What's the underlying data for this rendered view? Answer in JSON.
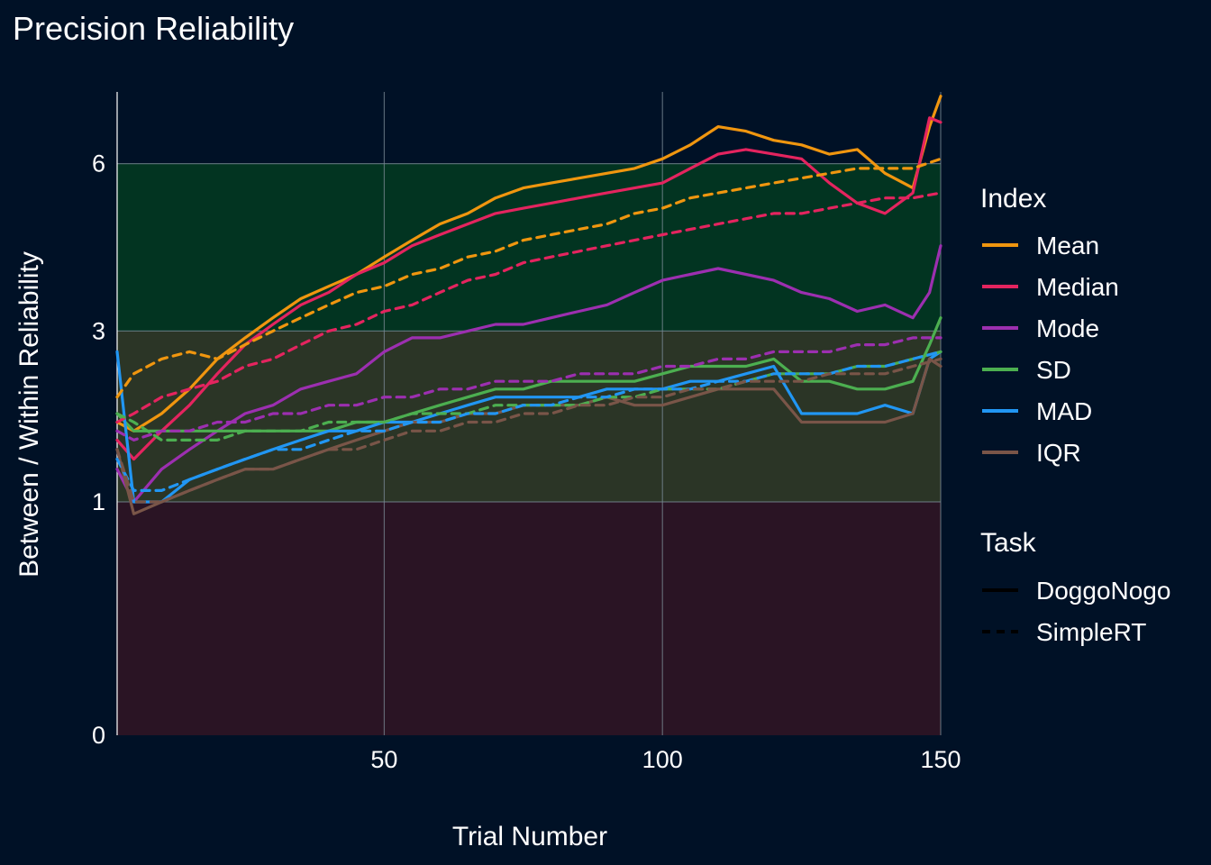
{
  "chart_data": {
    "type": "line",
    "title": "Precision Reliability",
    "xlabel": "Trial Number",
    "ylabel": "Between / Within Reliability",
    "xlim": [
      2,
      150
    ],
    "x_ticks": [
      50,
      100,
      150
    ],
    "y_ticks": [
      0,
      1,
      3,
      6
    ],
    "y_scale": "sqrt",
    "grid": true,
    "legend_position": "right",
    "bands": [
      {
        "from": 0,
        "to": 1,
        "color": "#2a1424"
      },
      {
        "from": 1,
        "to": 3,
        "color": "#2b3526"
      },
      {
        "from": 3,
        "to": 6,
        "color": "#023421"
      }
    ],
    "legend_index": {
      "title": "Index",
      "items": [
        {
          "label": "Mean",
          "color": "#f0960f"
        },
        {
          "label": "Median",
          "color": "#e4245f"
        },
        {
          "label": "Mode",
          "color": "#9c2fb0"
        },
        {
          "label": "SD",
          "color": "#4caf50"
        },
        {
          "label": "MAD",
          "color": "#2196f3"
        },
        {
          "label": "IQR",
          "color": "#795548"
        }
      ]
    },
    "legend_task": {
      "title": "Task",
      "items": [
        {
          "label": "DoggoNogo",
          "dash": "solid"
        },
        {
          "label": "SimpleRT",
          "dash": "dashed"
        }
      ]
    },
    "series": [
      {
        "index": "Mean",
        "task": "DoggoNogo",
        "color": "#f0960f",
        "dash": "solid",
        "x": [
          2,
          5,
          10,
          15,
          20,
          25,
          30,
          35,
          40,
          45,
          50,
          55,
          60,
          65,
          70,
          75,
          80,
          85,
          90,
          95,
          100,
          105,
          110,
          115,
          120,
          125,
          130,
          135,
          140,
          145,
          148,
          150
        ],
        "y": [
          1.8,
          1.7,
          1.9,
          2.2,
          2.6,
          2.9,
          3.2,
          3.5,
          3.7,
          3.9,
          4.2,
          4.5,
          4.8,
          5.0,
          5.3,
          5.5,
          5.6,
          5.7,
          5.8,
          5.9,
          6.1,
          6.4,
          6.8,
          6.7,
          6.5,
          6.4,
          6.2,
          6.3,
          5.8,
          5.5,
          6.8,
          7.5
        ]
      },
      {
        "index": "Median",
        "task": "DoggoNogo",
        "color": "#e4245f",
        "dash": "solid",
        "x": [
          2,
          5,
          10,
          15,
          20,
          25,
          30,
          35,
          40,
          45,
          50,
          55,
          60,
          65,
          70,
          75,
          80,
          85,
          90,
          95,
          100,
          105,
          110,
          115,
          120,
          125,
          130,
          135,
          140,
          145,
          148,
          150
        ],
        "y": [
          1.6,
          1.4,
          1.7,
          2.0,
          2.4,
          2.8,
          3.1,
          3.4,
          3.6,
          3.9,
          4.1,
          4.4,
          4.6,
          4.8,
          5.0,
          5.1,
          5.2,
          5.3,
          5.4,
          5.5,
          5.6,
          5.9,
          6.2,
          6.3,
          6.2,
          6.1,
          5.6,
          5.2,
          5.0,
          5.4,
          7.0,
          6.9
        ]
      },
      {
        "index": "Mode",
        "task": "DoggoNogo",
        "color": "#9c2fb0",
        "dash": "solid",
        "x": [
          2,
          5,
          10,
          15,
          20,
          25,
          30,
          35,
          40,
          45,
          50,
          55,
          60,
          65,
          70,
          75,
          80,
          85,
          90,
          95,
          100,
          105,
          110,
          115,
          120,
          125,
          130,
          135,
          140,
          145,
          148,
          150
        ],
        "y": [
          1.3,
          1.0,
          1.3,
          1.5,
          1.7,
          1.9,
          2.0,
          2.2,
          2.3,
          2.4,
          2.7,
          2.9,
          2.9,
          3.0,
          3.1,
          3.1,
          3.2,
          3.3,
          3.4,
          3.6,
          3.8,
          3.9,
          4.0,
          3.9,
          3.8,
          3.6,
          3.5,
          3.3,
          3.4,
          3.2,
          3.6,
          4.4
        ]
      },
      {
        "index": "SD",
        "task": "DoggoNogo",
        "color": "#4caf50",
        "dash": "solid",
        "x": [
          2,
          5,
          10,
          15,
          20,
          25,
          30,
          35,
          40,
          45,
          50,
          55,
          60,
          65,
          70,
          75,
          80,
          85,
          90,
          95,
          100,
          105,
          110,
          115,
          120,
          125,
          130,
          135,
          140,
          145,
          148,
          150
        ],
        "y": [
          1.9,
          1.7,
          1.7,
          1.7,
          1.7,
          1.7,
          1.7,
          1.7,
          1.7,
          1.8,
          1.8,
          1.9,
          2.0,
          2.1,
          2.2,
          2.2,
          2.3,
          2.3,
          2.3,
          2.3,
          2.4,
          2.5,
          2.5,
          2.5,
          2.6,
          2.3,
          2.3,
          2.2,
          2.2,
          2.3,
          2.8,
          3.2
        ]
      },
      {
        "index": "MAD",
        "task": "DoggoNogo",
        "color": "#2196f3",
        "dash": "solid",
        "x": [
          2,
          5,
          10,
          15,
          20,
          25,
          30,
          35,
          40,
          45,
          50,
          55,
          60,
          65,
          70,
          75,
          80,
          85,
          90,
          95,
          100,
          105,
          110,
          115,
          120,
          125,
          130,
          135,
          140,
          145,
          148,
          150
        ],
        "y": [
          2.7,
          1.0,
          1.0,
          1.2,
          1.3,
          1.4,
          1.5,
          1.6,
          1.7,
          1.7,
          1.8,
          1.8,
          1.9,
          2.0,
          2.1,
          2.1,
          2.1,
          2.1,
          2.2,
          2.2,
          2.2,
          2.3,
          2.3,
          2.4,
          2.5,
          1.9,
          1.9,
          1.9,
          2.0,
          1.9,
          2.6,
          2.7
        ]
      },
      {
        "index": "IQR",
        "task": "DoggoNogo",
        "color": "#795548",
        "dash": "solid",
        "x": [
          2,
          5,
          10,
          15,
          20,
          25,
          30,
          35,
          40,
          45,
          50,
          55,
          60,
          65,
          70,
          75,
          80,
          85,
          90,
          95,
          100,
          105,
          110,
          115,
          120,
          125,
          130,
          135,
          140,
          145,
          148,
          150
        ],
        "y": [
          1.5,
          0.9,
          1.0,
          1.1,
          1.2,
          1.3,
          1.3,
          1.4,
          1.5,
          1.6,
          1.7,
          1.8,
          1.8,
          1.9,
          1.9,
          2.0,
          2.0,
          2.0,
          2.1,
          2.0,
          2.0,
          2.1,
          2.2,
          2.2,
          2.2,
          1.8,
          1.8,
          1.8,
          1.8,
          1.9,
          2.6,
          2.5
        ]
      },
      {
        "index": "Mean",
        "task": "SimpleRT",
        "color": "#f0960f",
        "dash": "dashed",
        "x": [
          2,
          5,
          10,
          15,
          20,
          25,
          30,
          35,
          40,
          45,
          50,
          55,
          60,
          65,
          70,
          75,
          80,
          85,
          90,
          95,
          100,
          105,
          110,
          115,
          120,
          125,
          130,
          135,
          140,
          145,
          150
        ],
        "y": [
          2.1,
          2.4,
          2.6,
          2.7,
          2.6,
          2.8,
          3.0,
          3.2,
          3.4,
          3.6,
          3.7,
          3.9,
          4.0,
          4.2,
          4.3,
          4.5,
          4.6,
          4.7,
          4.8,
          5.0,
          5.1,
          5.3,
          5.4,
          5.5,
          5.6,
          5.7,
          5.8,
          5.9,
          5.9,
          5.9,
          6.1
        ]
      },
      {
        "index": "Median",
        "task": "SimpleRT",
        "color": "#e4245f",
        "dash": "dashed",
        "x": [
          2,
          5,
          10,
          15,
          20,
          25,
          30,
          35,
          40,
          45,
          50,
          55,
          60,
          65,
          70,
          75,
          80,
          85,
          90,
          95,
          100,
          105,
          110,
          115,
          120,
          125,
          130,
          135,
          140,
          145,
          150
        ],
        "y": [
          1.8,
          1.9,
          2.1,
          2.2,
          2.3,
          2.5,
          2.6,
          2.8,
          3.0,
          3.1,
          3.3,
          3.4,
          3.6,
          3.8,
          3.9,
          4.1,
          4.2,
          4.3,
          4.4,
          4.5,
          4.6,
          4.7,
          4.8,
          4.9,
          5.0,
          5.0,
          5.1,
          5.2,
          5.3,
          5.3,
          5.4
        ]
      },
      {
        "index": "Mode",
        "task": "SimpleRT",
        "color": "#9c2fb0",
        "dash": "dashed",
        "x": [
          2,
          5,
          10,
          15,
          20,
          25,
          30,
          35,
          40,
          45,
          50,
          55,
          60,
          65,
          70,
          75,
          80,
          85,
          90,
          95,
          100,
          105,
          110,
          115,
          120,
          125,
          130,
          135,
          140,
          145,
          150
        ],
        "y": [
          1.7,
          1.6,
          1.7,
          1.7,
          1.8,
          1.8,
          1.9,
          1.9,
          2.0,
          2.0,
          2.1,
          2.1,
          2.2,
          2.2,
          2.3,
          2.3,
          2.3,
          2.4,
          2.4,
          2.4,
          2.5,
          2.5,
          2.6,
          2.6,
          2.7,
          2.7,
          2.7,
          2.8,
          2.8,
          2.9,
          2.9
        ]
      },
      {
        "index": "SD",
        "task": "SimpleRT",
        "color": "#4caf50",
        "dash": "dashed",
        "x": [
          2,
          5,
          10,
          15,
          20,
          25,
          30,
          35,
          40,
          45,
          50,
          55,
          60,
          65,
          70,
          75,
          80,
          85,
          90,
          95,
          100,
          105,
          110,
          115,
          120,
          125,
          130,
          135,
          140,
          145,
          150
        ],
        "y": [
          1.9,
          1.8,
          1.6,
          1.6,
          1.6,
          1.7,
          1.7,
          1.7,
          1.8,
          1.8,
          1.8,
          1.9,
          1.9,
          1.9,
          2.0,
          2.0,
          2.0,
          2.0,
          2.1,
          2.1,
          2.2,
          2.2,
          2.2,
          2.3,
          2.4,
          2.4,
          2.4,
          2.5,
          2.5,
          2.6,
          2.7
        ]
      },
      {
        "index": "MAD",
        "task": "SimpleRT",
        "color": "#2196f3",
        "dash": "dashed",
        "x": [
          2,
          5,
          10,
          15,
          20,
          25,
          30,
          35,
          40,
          45,
          50,
          55,
          60,
          65,
          70,
          75,
          80,
          85,
          90,
          95,
          100,
          105,
          110,
          115,
          120,
          125,
          130,
          135,
          140,
          145,
          150
        ],
        "y": [
          1.4,
          1.1,
          1.1,
          1.2,
          1.3,
          1.4,
          1.5,
          1.5,
          1.6,
          1.7,
          1.7,
          1.8,
          1.8,
          1.9,
          1.9,
          2.0,
          2.0,
          2.1,
          2.1,
          2.2,
          2.2,
          2.2,
          2.3,
          2.3,
          2.4,
          2.4,
          2.4,
          2.5,
          2.5,
          2.6,
          2.7
        ]
      },
      {
        "index": "IQR",
        "task": "SimpleRT",
        "color": "#795548",
        "dash": "dashed",
        "x": [
          2,
          5,
          10,
          15,
          20,
          25,
          30,
          35,
          40,
          45,
          50,
          55,
          60,
          65,
          70,
          75,
          80,
          85,
          90,
          95,
          100,
          105,
          110,
          115,
          120,
          125,
          130,
          135,
          140,
          145,
          150
        ],
        "y": [
          1.5,
          1.0,
          1.0,
          1.1,
          1.2,
          1.3,
          1.3,
          1.4,
          1.5,
          1.5,
          1.6,
          1.7,
          1.7,
          1.8,
          1.8,
          1.9,
          1.9,
          2.0,
          2.0,
          2.1,
          2.1,
          2.2,
          2.2,
          2.3,
          2.3,
          2.3,
          2.4,
          2.4,
          2.4,
          2.5,
          2.6
        ]
      }
    ]
  }
}
